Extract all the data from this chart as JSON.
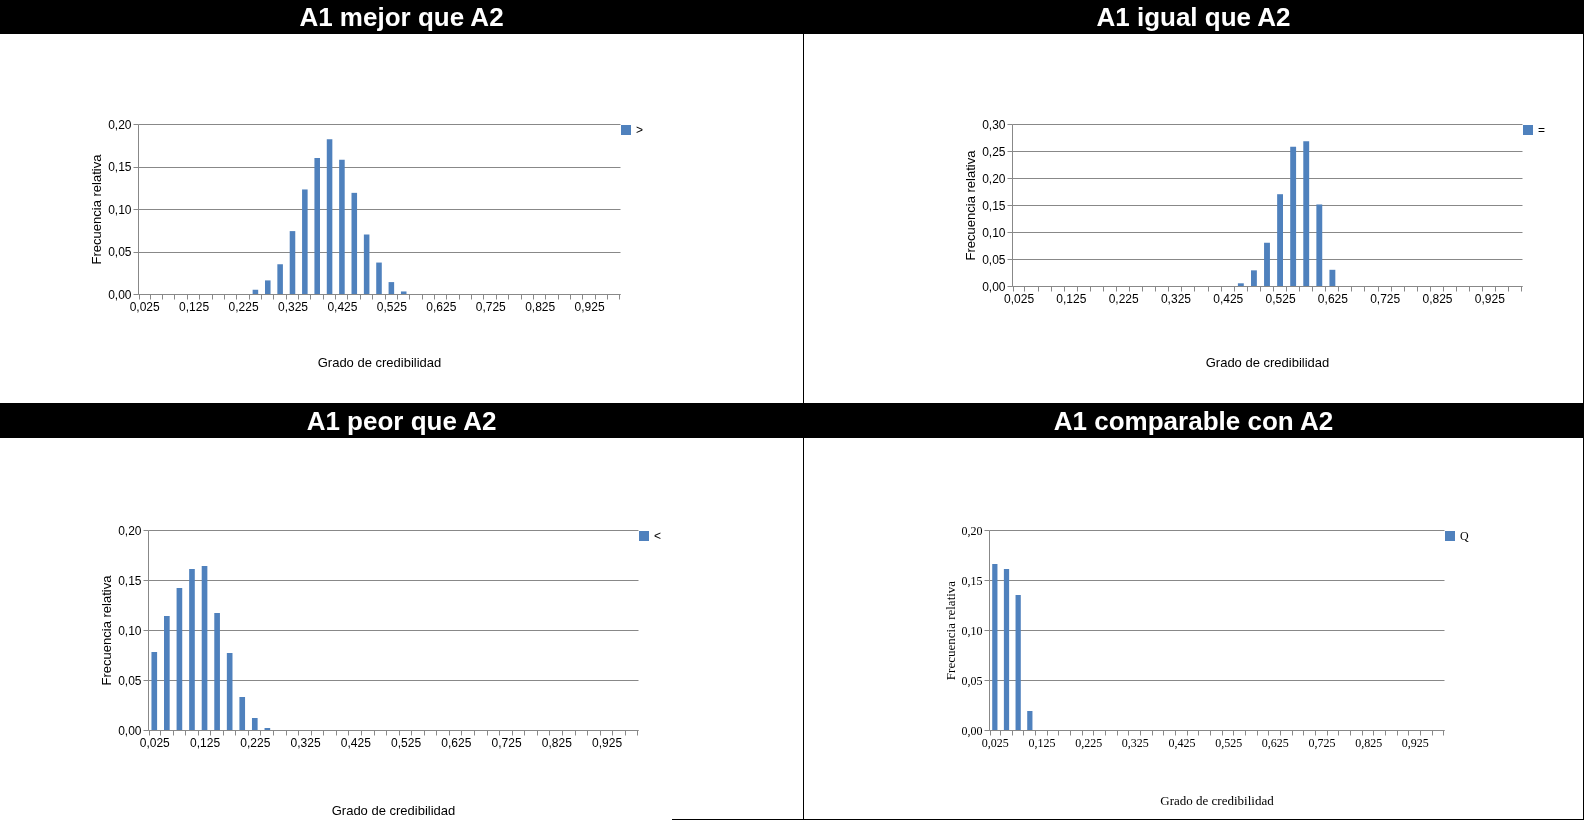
{
  "chart_data": [
    {
      "type": "bar",
      "title": "A1 mejor que A2",
      "xlabel": "Grado de credibilidad",
      "ylabel": "Frecuencia relativa",
      "categories": [
        "0,025",
        null,
        null,
        null,
        "0,125",
        null,
        null,
        null,
        "0,225",
        null,
        null,
        null,
        "0,325",
        null,
        null,
        null,
        "0,425",
        null,
        null,
        null,
        "0,525",
        null,
        null,
        null,
        "0,625",
        null,
        null,
        null,
        "0,725",
        null,
        null,
        null,
        "0,825",
        null,
        null,
        null,
        "0,925",
        null,
        null
      ],
      "series": [
        {
          "name": ">",
          "color": "#4f81bd",
          "values": [
            0,
            0,
            0,
            0,
            0,
            0,
            0,
            0,
            null,
            0.005,
            0.016,
            0.035,
            0.074,
            0.123,
            0.16,
            0.182,
            0.158,
            0.119,
            0.07,
            0.037,
            0.014,
            0.003,
            null,
            0,
            0,
            0,
            0,
            0,
            0,
            0,
            0,
            0,
            0,
            0,
            0,
            0,
            0,
            0,
            0
          ]
        }
      ],
      "ylim": [
        0,
        0.2
      ],
      "yticks": [
        {
          "value": 0,
          "label": "0,00"
        },
        {
          "value": 0.05,
          "label": "0,05"
        },
        {
          "value": 0.1,
          "label": "0,10"
        },
        {
          "value": 0.15,
          "label": "0,15"
        },
        {
          "value": 0.2,
          "label": "0,20"
        }
      ],
      "grid": "y",
      "legend": "right"
    },
    {
      "type": "bar",
      "title": "A1 igual que A2",
      "xlabel": "Grado de credibilidad",
      "ylabel": "Frecuencia relativa",
      "categories": [
        "0,025",
        null,
        null,
        null,
        "0,125",
        null,
        null,
        null,
        "0,225",
        null,
        null,
        null,
        "0,325",
        null,
        null,
        null,
        "0,425",
        null,
        null,
        null,
        "0,525",
        null,
        null,
        null,
        "0,625",
        null,
        null,
        null,
        "0,725",
        null,
        null,
        null,
        "0,825",
        null,
        null,
        null,
        "0,925",
        null,
        null
      ],
      "series": [
        {
          "name": "=",
          "color": "#4f81bd",
          "values": [
            0,
            0,
            0,
            0,
            0,
            0,
            0,
            0,
            0,
            0,
            0,
            0,
            0,
            0,
            0,
            0,
            0,
            0.005,
            0.029,
            0.08,
            0.17,
            0.258,
            0.268,
            0.151,
            0.03,
            0,
            0,
            0,
            0,
            0,
            0,
            0,
            0,
            0,
            0,
            0,
            0,
            0,
            0
          ]
        }
      ],
      "ylim": [
        0,
        0.3
      ],
      "yticks": [
        {
          "value": 0,
          "label": "0,00"
        },
        {
          "value": 0.05,
          "label": "0,05"
        },
        {
          "value": 0.1,
          "label": "0,10"
        },
        {
          "value": 0.15,
          "label": "0,15"
        },
        {
          "value": 0.2,
          "label": "0,20"
        },
        {
          "value": 0.25,
          "label": "0,25"
        },
        {
          "value": 0.3,
          "label": "0,30"
        }
      ],
      "grid": "y",
      "legend": "right"
    },
    {
      "type": "bar",
      "title": "A1 peor que A2",
      "xlabel": "Grado de credibilidad",
      "ylabel": "Frecuencia relativa",
      "categories": [
        "0,025",
        null,
        null,
        null,
        "0,125",
        null,
        null,
        null,
        "0,225",
        null,
        null,
        null,
        "0,325",
        null,
        null,
        null,
        "0,425",
        null,
        null,
        null,
        "0,525",
        null,
        null,
        null,
        "0,625",
        null,
        null,
        null,
        "0,725",
        null,
        null,
        null,
        "0,825",
        null,
        null,
        null,
        "0,925",
        null,
        null
      ],
      "series": [
        {
          "name": "<",
          "color": "#4f81bd",
          "values": [
            0.078,
            0.114,
            0.142,
            0.161,
            0.164,
            0.117,
            0.077,
            0.033,
            0.012,
            0.002,
            0,
            0,
            0,
            0,
            0,
            0,
            0,
            0,
            0,
            0,
            0,
            0,
            0,
            0,
            0,
            0,
            0,
            0,
            0,
            0,
            0,
            0,
            0,
            0,
            0,
            0,
            0,
            0,
            0
          ]
        }
      ],
      "ylim": [
        0,
        0.2
      ],
      "yticks": [
        {
          "value": 0,
          "label": "0,00"
        },
        {
          "value": 0.05,
          "label": "0,05"
        },
        {
          "value": 0.1,
          "label": "0,10"
        },
        {
          "value": 0.15,
          "label": "0,15"
        },
        {
          "value": 0.2,
          "label": "0,20"
        }
      ],
      "grid": "y",
      "legend": "right"
    },
    {
      "type": "bar",
      "title": "A1 comparable con A2",
      "xlabel": "Grado de credibilidad",
      "ylabel": "Frecuencia relativa",
      "categories": [
        "0,025",
        null,
        null,
        null,
        "0,125",
        null,
        null,
        null,
        "0,225",
        null,
        null,
        null,
        "0,325",
        null,
        null,
        null,
        "0,425",
        null,
        null,
        null,
        "0,525",
        null,
        null,
        null,
        "0,625",
        null,
        null,
        null,
        "0,725",
        null,
        null,
        null,
        "0,825",
        null,
        null,
        null,
        "0,925",
        null,
        null
      ],
      "series": [
        {
          "name": "Q",
          "color": "#4f81bd",
          "values": [
            0.166,
            0.161,
            0.135,
            0.019,
            0,
            0,
            0,
            0,
            0,
            0,
            0,
            0,
            0,
            0,
            0,
            0,
            0,
            0,
            0,
            0,
            0,
            0,
            0,
            0,
            0,
            0,
            0,
            0,
            0,
            0,
            0,
            0,
            0,
            0,
            0,
            0,
            0,
            0,
            0
          ]
        }
      ],
      "ylim": [
        0,
        0.2
      ],
      "yticks": [
        {
          "value": 0,
          "label": "0,00"
        },
        {
          "value": 0.05,
          "label": "0,05"
        },
        {
          "value": 0.1,
          "label": "0,10"
        },
        {
          "value": 0.15,
          "label": "0,15"
        },
        {
          "value": 0.2,
          "label": "0,20"
        }
      ],
      "grid": "y",
      "legend": "right"
    }
  ]
}
